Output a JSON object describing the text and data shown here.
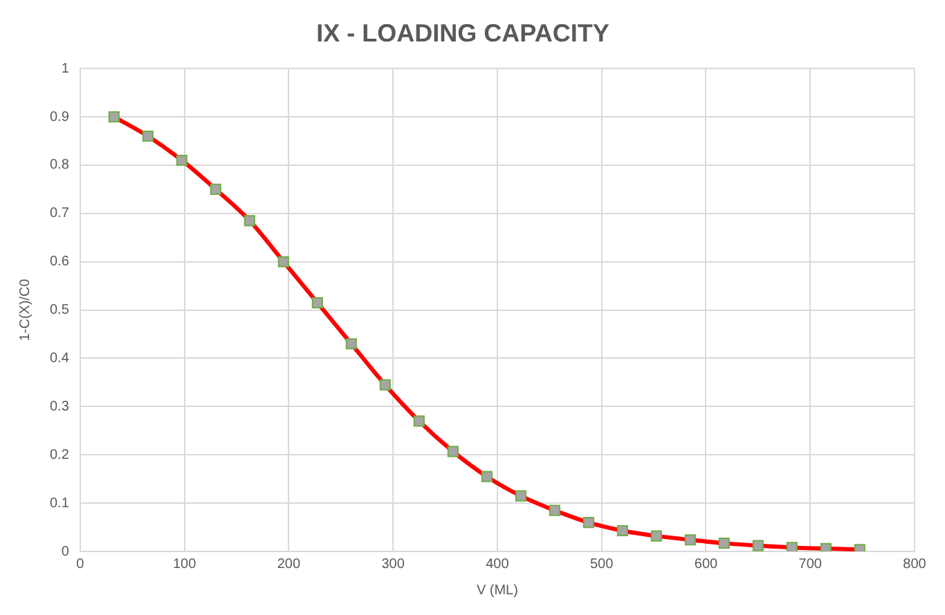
{
  "chart_data": {
    "type": "line",
    "title": "IX - LOADING CAPACITY",
    "xlabel": "V (ML)",
    "ylabel": "1-C(X)/C0",
    "x": [
      32.5,
      65,
      97.5,
      130,
      162.5,
      195,
      227.5,
      260,
      292.5,
      325,
      357.5,
      390,
      422.5,
      455,
      487.5,
      520,
      552.5,
      585,
      617.5,
      650,
      682.5,
      715,
      747.5
    ],
    "series": [
      {
        "color": "#ff0000",
        "values": [
          0.9,
          0.86,
          0.81,
          0.75,
          0.685,
          0.6,
          0.515,
          0.43,
          0.345,
          0.27,
          0.207,
          0.155,
          0.115,
          0.085,
          0.06,
          0.043,
          0.032,
          0.024,
          0.017,
          0.012,
          0.008,
          0.006,
          0.004
        ]
      }
    ],
    "xlim": [
      0,
      800
    ],
    "xticks": [
      0,
      100,
      200,
      300,
      400,
      500,
      600,
      700,
      800
    ],
    "ylim": [
      0,
      1
    ],
    "yticks": [
      0,
      0.1,
      0.2,
      0.3,
      0.4,
      0.5,
      0.6,
      0.7,
      0.8,
      0.9,
      1
    ],
    "grid": true,
    "marker": "square",
    "line_style": "solid",
    "legend": false
  }
}
